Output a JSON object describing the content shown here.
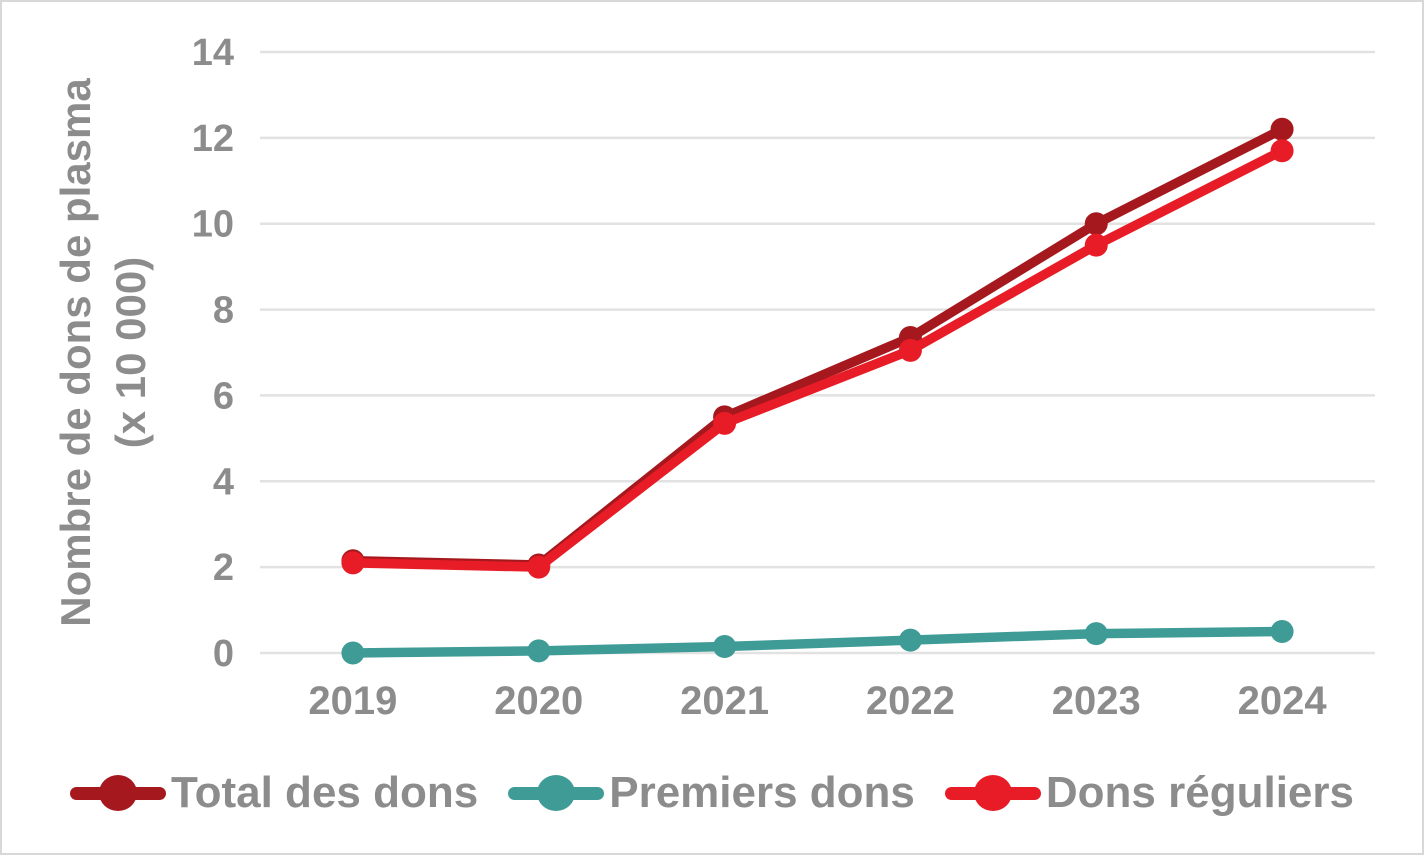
{
  "chart_data": {
    "type": "line",
    "categories": [
      "2019",
      "2020",
      "2021",
      "2022",
      "2023",
      "2024"
    ],
    "series": [
      {
        "name": "Total des dons",
        "color": "#A5191E",
        "values": [
          2.15,
          2.05,
          5.5,
          7.35,
          10.0,
          12.2
        ]
      },
      {
        "name": "Premiers dons",
        "color": "#3E9B96",
        "values": [
          0.0,
          0.05,
          0.15,
          0.3,
          0.45,
          0.5
        ]
      },
      {
        "name": "Dons réguliers",
        "color": "#E81C26",
        "values": [
          2.1,
          2.0,
          5.35,
          7.05,
          9.5,
          11.7
        ]
      }
    ],
    "title": "",
    "xlabel": "",
    "ylabel_lines": [
      "Nombre de dons de plasma",
      "(x 10 000)"
    ],
    "yticks": [
      0,
      2,
      4,
      6,
      8,
      10,
      12,
      14
    ],
    "ylim": [
      0,
      14
    ],
    "grid": "horizontal-only",
    "legend_position": "bottom",
    "colors": {
      "axis_text": "#8C8C8C",
      "gridline": "#E2E2E2",
      "frame_border": "#D8D8D8",
      "background": "#FFFFFF"
    }
  }
}
